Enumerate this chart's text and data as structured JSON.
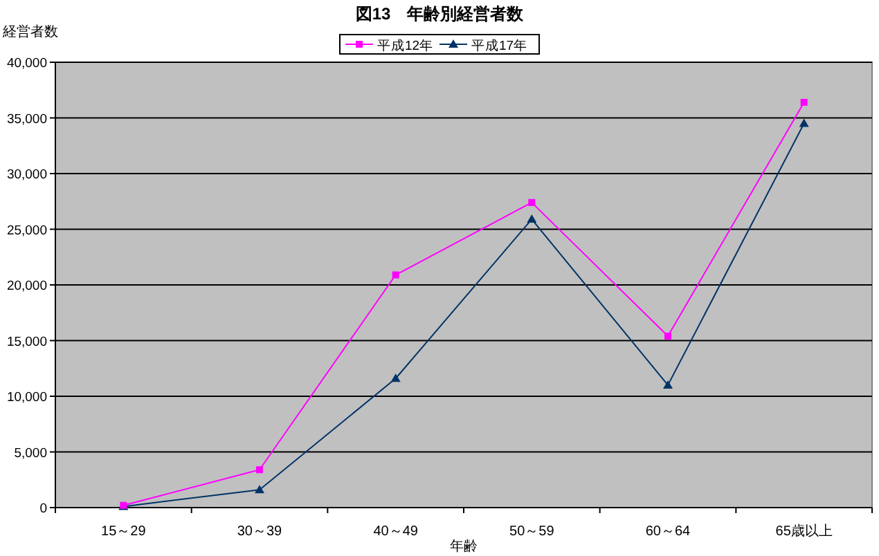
{
  "chart_data": {
    "type": "line",
    "title": "図13　年齢別経営者数",
    "ylabel": "経営者数",
    "xlabel": "年齢",
    "categories": [
      "15～29",
      "30～39",
      "40～49",
      "50～59",
      "60～64",
      "65歳以上"
    ],
    "series": [
      {
        "name": "平成12年",
        "color": "#ff00ff",
        "marker": "square",
        "values": [
          200,
          3400,
          20900,
          27400,
          15400,
          36400
        ]
      },
      {
        "name": "平成17年",
        "color": "#003366",
        "marker": "triangle",
        "values": [
          100,
          1600,
          11600,
          25900,
          11000,
          34500
        ]
      }
    ],
    "ylim": [
      0,
      40000
    ],
    "yticks": [
      {
        "value": 0,
        "label": "0"
      },
      {
        "value": 5000,
        "label": "5,000"
      },
      {
        "value": 10000,
        "label": "10,000"
      },
      {
        "value": 15000,
        "label": "15,000"
      },
      {
        "value": 20000,
        "label": "20,000"
      },
      {
        "value": 25000,
        "label": "25,000"
      },
      {
        "value": 30000,
        "label": "30,000"
      },
      {
        "value": 35000,
        "label": "35,000"
      },
      {
        "value": 40000,
        "label": "40,000"
      }
    ],
    "grid": "y",
    "legend": "top"
  }
}
